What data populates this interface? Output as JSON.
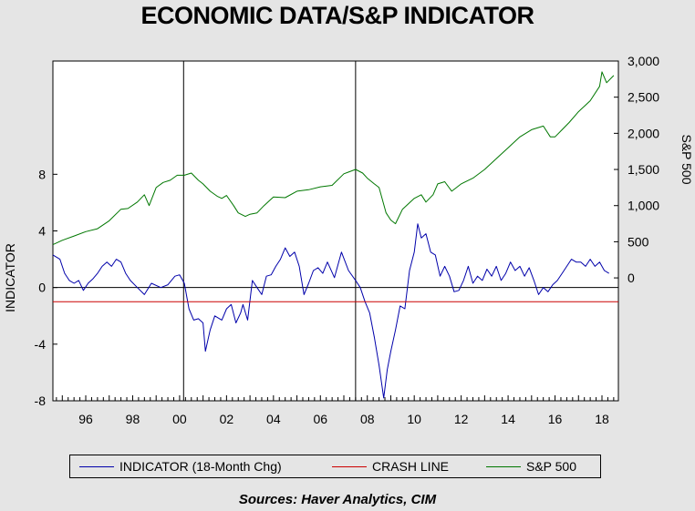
{
  "chart_data": {
    "type": "line",
    "title": "ECONOMIC DATA/S&P INDICATOR",
    "source": "Sources:  Haver Analytics, CIM",
    "left_axis": {
      "label": "INDICATOR",
      "range": [
        -8,
        16
      ],
      "ticks": [
        {
          "v": 8,
          "label": "8"
        },
        {
          "v": 4,
          "label": "4"
        },
        {
          "v": 0,
          "label": "0"
        },
        {
          "v": -4,
          "label": "-4"
        },
        {
          "v": -8,
          "label": "-8"
        }
      ]
    },
    "right_axis": {
      "label": "S&P 500",
      "range": [
        -1700,
        3000
      ],
      "ticks": [
        {
          "v": 3000,
          "label": "3,000"
        },
        {
          "v": 2500,
          "label": "2,500"
        },
        {
          "v": 2000,
          "label": "2,000"
        },
        {
          "v": 1500,
          "label": "1,500"
        },
        {
          "v": 1000,
          "label": "1,000"
        },
        {
          "v": 500,
          "label": "500"
        },
        {
          "v": 0,
          "label": "0"
        }
      ]
    },
    "x_axis": {
      "range": [
        1994.6,
        2018.7
      ],
      "ticks": [
        {
          "v": 1996,
          "label": "96"
        },
        {
          "v": 1998,
          "label": "98"
        },
        {
          "v": 2000,
          "label": "00"
        },
        {
          "v": 2002,
          "label": "02"
        },
        {
          "v": 2004,
          "label": "04"
        },
        {
          "v": 2006,
          "label": "06"
        },
        {
          "v": 2008,
          "label": "08"
        },
        {
          "v": 2010,
          "label": "10"
        },
        {
          "v": 2012,
          "label": "12"
        },
        {
          "v": 2014,
          "label": "14"
        },
        {
          "v": 2016,
          "label": "16"
        },
        {
          "v": 2018,
          "label": "18"
        }
      ]
    },
    "recession_lines": [
      2000.17,
      2007.5
    ],
    "zero_line": 0,
    "grid": false,
    "legend_position": "bottom",
    "series": [
      {
        "name": "INDICATOR (18-Month Chg)",
        "axis": "left",
        "color": "#0000aa",
        "x": [
          1994.6,
          1994.9,
          1995.1,
          1995.3,
          1995.5,
          1995.7,
          1995.9,
          1996.1,
          1996.3,
          1996.5,
          1996.7,
          1996.9,
          1997.1,
          1997.3,
          1997.5,
          1997.7,
          1997.9,
          1998.2,
          1998.5,
          1998.8,
          1999.2,
          1999.5,
          1999.8,
          2000.0,
          2000.2,
          2000.4,
          2000.6,
          2000.8,
          2001.0,
          2001.1,
          2001.3,
          2001.5,
          2001.8,
          2002.0,
          2002.2,
          2002.4,
          2002.6,
          2002.7,
          2002.9,
          2003.1,
          2003.3,
          2003.5,
          2003.7,
          2003.9,
          2004.1,
          2004.3,
          2004.5,
          2004.7,
          2004.9,
          2005.1,
          2005.3,
          2005.5,
          2005.7,
          2005.9,
          2006.1,
          2006.3,
          2006.6,
          2006.9,
          2007.2,
          2007.5,
          2007.7,
          2007.9,
          2008.1,
          2008.3,
          2008.5,
          2008.7,
          2008.85,
          2009.0,
          2009.2,
          2009.4,
          2009.6,
          2009.8,
          2010.0,
          2010.15,
          2010.3,
          2010.5,
          2010.7,
          2010.9,
          2011.1,
          2011.3,
          2011.5,
          2011.7,
          2011.9,
          2012.1,
          2012.3,
          2012.5,
          2012.7,
          2012.9,
          2013.1,
          2013.3,
          2013.5,
          2013.7,
          2013.9,
          2014.1,
          2014.3,
          2014.5,
          2014.7,
          2014.9,
          2015.1,
          2015.3,
          2015.5,
          2015.7,
          2015.9,
          2016.1,
          2016.3,
          2016.5,
          2016.7,
          2016.9,
          2017.1,
          2017.3,
          2017.5,
          2017.7,
          2017.9,
          2018.1,
          2018.3
        ],
        "values": [
          2.3,
          2.0,
          1.0,
          0.5,
          0.3,
          0.5,
          -0.2,
          0.3,
          0.6,
          1.0,
          1.5,
          1.8,
          1.5,
          2.0,
          1.8,
          1.0,
          0.5,
          0.0,
          -0.5,
          0.3,
          0.0,
          0.2,
          0.8,
          0.9,
          0.3,
          -1.5,
          -2.3,
          -2.2,
          -2.5,
          -4.5,
          -3.0,
          -2.0,
          -2.3,
          -1.5,
          -1.2,
          -2.5,
          -1.8,
          -1.2,
          -2.3,
          0.5,
          0.0,
          -0.5,
          0.8,
          0.9,
          1.5,
          2.0,
          2.8,
          2.2,
          2.5,
          1.5,
          -0.5,
          0.3,
          1.2,
          1.4,
          1.0,
          1.8,
          0.7,
          2.5,
          1.2,
          0.5,
          0.0,
          -1.0,
          -1.8,
          -3.5,
          -5.5,
          -7.8,
          -5.8,
          -4.5,
          -3.0,
          -1.3,
          -1.5,
          1.2,
          2.5,
          4.5,
          3.5,
          3.8,
          2.5,
          2.3,
          0.8,
          1.5,
          0.8,
          -0.3,
          -0.2,
          0.5,
          1.5,
          0.3,
          0.8,
          0.5,
          1.3,
          0.8,
          1.5,
          0.5,
          1.0,
          1.8,
          1.2,
          1.5,
          0.8,
          1.4,
          0.5,
          -0.5,
          0.0,
          -0.3,
          0.2,
          0.5,
          1.0,
          1.5,
          2.0,
          1.8,
          1.8,
          1.5,
          2.0,
          1.5,
          1.8,
          1.2,
          1.0
        ]
      },
      {
        "name": "CRASH LINE",
        "axis": "left",
        "color": "#cc0000",
        "x": [
          1994.6,
          2018.7
        ],
        "values": [
          -1.0,
          -1.0
        ]
      },
      {
        "name": "S&P 500",
        "axis": "right",
        "color": "#007700",
        "x": [
          1994.6,
          1995.0,
          1995.5,
          1996.0,
          1996.5,
          1997.0,
          1997.5,
          1997.8,
          1998.2,
          1998.5,
          1998.7,
          1999.0,
          1999.3,
          1999.6,
          1999.9,
          2000.2,
          2000.5,
          2000.8,
          2001.0,
          2001.3,
          2001.6,
          2001.8,
          2002.0,
          2002.3,
          2002.5,
          2002.8,
          2003.0,
          2003.3,
          2003.6,
          2004.0,
          2004.5,
          2005.0,
          2005.5,
          2006.0,
          2006.5,
          2007.0,
          2007.5,
          2007.8,
          2008.0,
          2008.3,
          2008.5,
          2008.8,
          2009.0,
          2009.2,
          2009.5,
          2010.0,
          2010.3,
          2010.5,
          2010.8,
          2011.0,
          2011.3,
          2011.6,
          2011.8,
          2012.0,
          2012.5,
          2013.0,
          2013.5,
          2014.0,
          2014.5,
          2015.0,
          2015.5,
          2015.8,
          2016.0,
          2016.3,
          2016.6,
          2017.0,
          2017.5,
          2017.9,
          2018.0,
          2018.2,
          2018.5
        ],
        "values": [
          460,
          520,
          580,
          640,
          680,
          790,
          950,
          960,
          1050,
          1150,
          1000,
          1250,
          1320,
          1350,
          1420,
          1420,
          1450,
          1350,
          1300,
          1200,
          1130,
          1100,
          1140,
          1000,
          900,
          850,
          880,
          900,
          1000,
          1120,
          1110,
          1200,
          1220,
          1260,
          1280,
          1440,
          1500,
          1450,
          1380,
          1300,
          1250,
          900,
          800,
          750,
          950,
          1100,
          1150,
          1050,
          1150,
          1300,
          1330,
          1200,
          1250,
          1300,
          1380,
          1500,
          1650,
          1800,
          1950,
          2050,
          2100,
          1950,
          1950,
          2050,
          2150,
          2300,
          2450,
          2650,
          2850,
          2700,
          2800
        ]
      }
    ]
  }
}
